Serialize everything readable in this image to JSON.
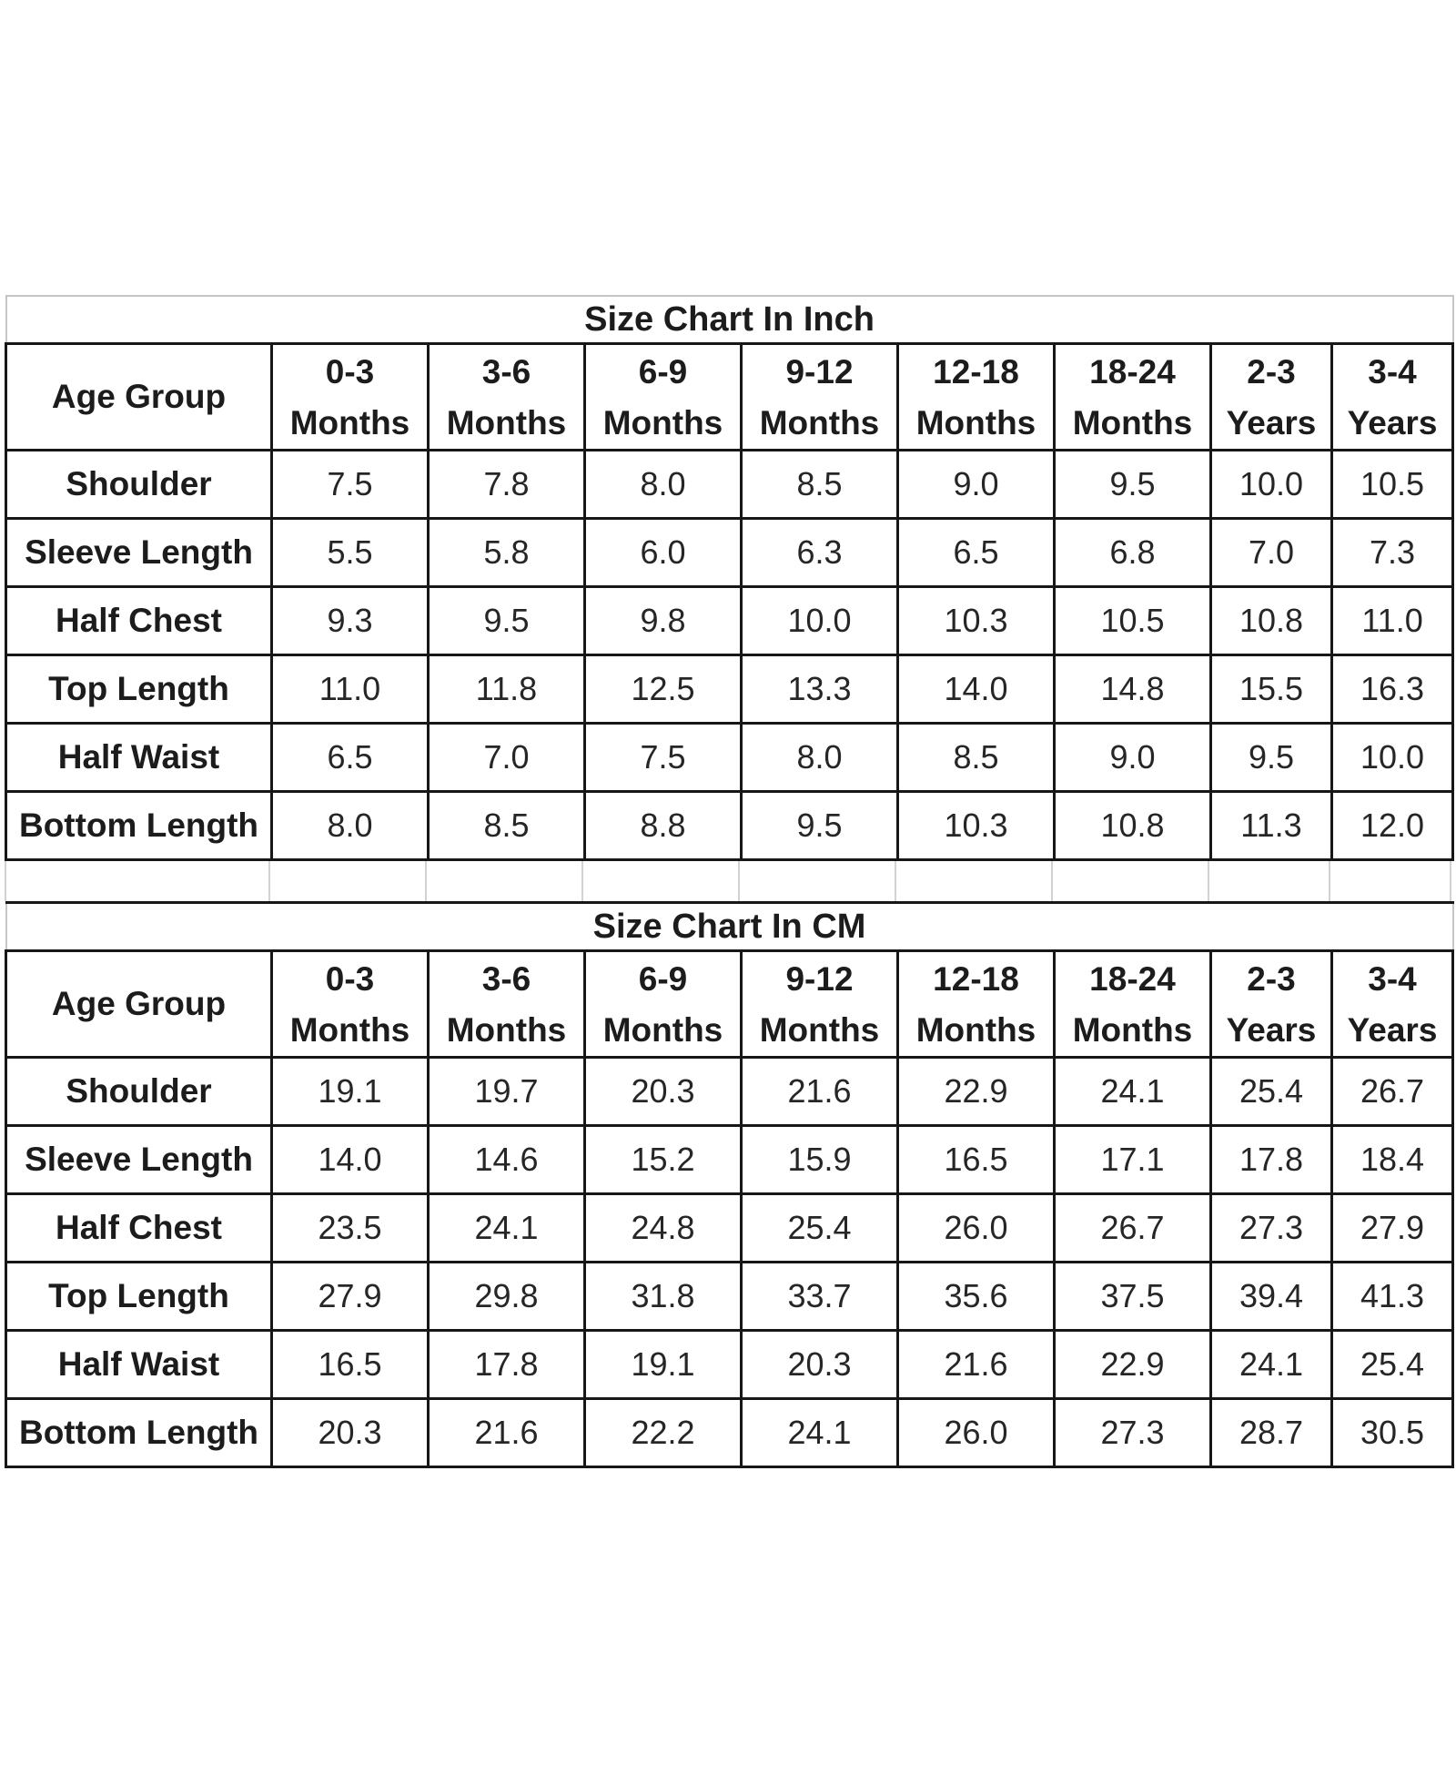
{
  "colors": {
    "background": "#ffffff",
    "grid_border": "#171717",
    "light_border": "#c6c6c6",
    "text": "#1c1c1c"
  },
  "tables": [
    {
      "title": "Size Chart In Inch",
      "age_group_label": "Age Group",
      "columns": [
        {
          "range": "0-3",
          "unit": "Months"
        },
        {
          "range": "3-6",
          "unit": "Months"
        },
        {
          "range": "6-9",
          "unit": "Months"
        },
        {
          "range": "9-12",
          "unit": "Months"
        },
        {
          "range": "12-18",
          "unit": "Months"
        },
        {
          "range": "18-24",
          "unit": "Months"
        },
        {
          "range": "2-3",
          "unit": "Years"
        },
        {
          "range": "3-4",
          "unit": "Years"
        }
      ],
      "rows": [
        {
          "label": "Shoulder",
          "values": [
            "7.5",
            "7.8",
            "8.0",
            "8.5",
            "9.0",
            "9.5",
            "10.0",
            "10.5"
          ]
        },
        {
          "label": "Sleeve Length",
          "values": [
            "5.5",
            "5.8",
            "6.0",
            "6.3",
            "6.5",
            "6.8",
            "7.0",
            "7.3"
          ]
        },
        {
          "label": "Half Chest",
          "values": [
            "9.3",
            "9.5",
            "9.8",
            "10.0",
            "10.3",
            "10.5",
            "10.8",
            "11.0"
          ]
        },
        {
          "label": "Top Length",
          "values": [
            "11.0",
            "11.8",
            "12.5",
            "13.3",
            "14.0",
            "14.8",
            "15.5",
            "16.3"
          ]
        },
        {
          "label": "Half Waist",
          "values": [
            "6.5",
            "7.0",
            "7.5",
            "8.0",
            "8.5",
            "9.0",
            "9.5",
            "10.0"
          ]
        },
        {
          "label": "Bottom Length",
          "values": [
            "8.0",
            "8.5",
            "8.8",
            "9.5",
            "10.3",
            "10.8",
            "11.3",
            "12.0"
          ]
        }
      ]
    },
    {
      "title": "Size Chart In CM",
      "age_group_label": "Age Group",
      "columns": [
        {
          "range": "0-3",
          "unit": "Months"
        },
        {
          "range": "3-6",
          "unit": "Months"
        },
        {
          "range": "6-9",
          "unit": "Months"
        },
        {
          "range": "9-12",
          "unit": "Months"
        },
        {
          "range": "12-18",
          "unit": "Months"
        },
        {
          "range": "18-24",
          "unit": "Months"
        },
        {
          "range": "2-3",
          "unit": "Years"
        },
        {
          "range": "3-4",
          "unit": "Years"
        }
      ],
      "rows": [
        {
          "label": "Shoulder",
          "values": [
            "19.1",
            "19.7",
            "20.3",
            "21.6",
            "22.9",
            "24.1",
            "25.4",
            "26.7"
          ]
        },
        {
          "label": "Sleeve Length",
          "values": [
            "14.0",
            "14.6",
            "15.2",
            "15.9",
            "16.5",
            "17.1",
            "17.8",
            "18.4"
          ]
        },
        {
          "label": "Half Chest",
          "values": [
            "23.5",
            "24.1",
            "24.8",
            "25.4",
            "26.0",
            "26.7",
            "27.3",
            "27.9"
          ]
        },
        {
          "label": "Top Length",
          "values": [
            "27.9",
            "29.8",
            "31.8",
            "33.7",
            "35.6",
            "37.5",
            "39.4",
            "41.3"
          ]
        },
        {
          "label": "Half Waist",
          "values": [
            "16.5",
            "17.8",
            "19.1",
            "20.3",
            "21.6",
            "22.9",
            "24.1",
            "25.4"
          ]
        },
        {
          "label": "Bottom Length",
          "values": [
            "20.3",
            "21.6",
            "22.2",
            "24.1",
            "26.0",
            "27.3",
            "28.7",
            "30.5"
          ]
        }
      ]
    }
  ]
}
